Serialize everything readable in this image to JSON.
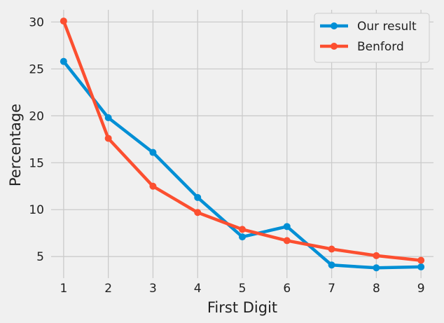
{
  "chart_data": {
    "type": "line",
    "title": "",
    "xlabel": "First Digit",
    "ylabel": "Percentage",
    "x": [
      1,
      2,
      3,
      4,
      5,
      6,
      7,
      8,
      9
    ],
    "xticks": [
      "1",
      "2",
      "3",
      "4",
      "5",
      "6",
      "7",
      "8",
      "9"
    ],
    "yticks": [
      "5",
      "10",
      "15",
      "20",
      "25",
      "30"
    ],
    "xlim": [
      0.72,
      9.28
    ],
    "ylim": [
      2.7,
      31.3
    ],
    "grid": true,
    "legend_position": "top-right",
    "series": [
      {
        "name": "Our result",
        "color": "#008fd5",
        "values": [
          25.8,
          19.8,
          16.1,
          11.3,
          7.1,
          8.2,
          4.1,
          3.8,
          3.9
        ]
      },
      {
        "name": "Benford",
        "color": "#fc4f30",
        "values": [
          30.1,
          17.6,
          12.5,
          9.7,
          7.9,
          6.7,
          5.8,
          5.1,
          4.6
        ]
      }
    ]
  }
}
